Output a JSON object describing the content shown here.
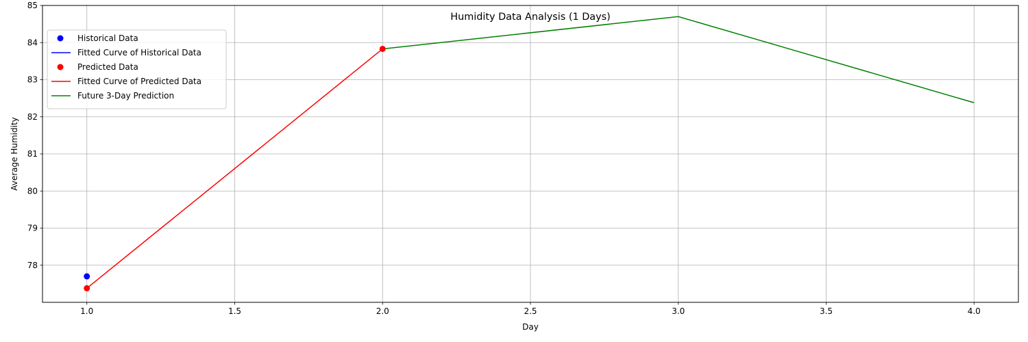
{
  "chart_data": {
    "type": "line",
    "title": "Humidity Data Analysis (1 Days)",
    "xlabel": "Day",
    "ylabel": "Average Humidity",
    "xlim": [
      0.85,
      4.15
    ],
    "ylim": [
      77.0,
      85.0
    ],
    "xticks": [
      1.0,
      1.5,
      2.0,
      2.5,
      3.0,
      3.5,
      4.0
    ],
    "xtick_labels": [
      "1.0",
      "1.5",
      "2.0",
      "2.5",
      "3.0",
      "3.5",
      "4.0"
    ],
    "yticks": [
      78,
      79,
      80,
      81,
      82,
      83,
      84,
      85
    ],
    "ytick_labels": [
      "78",
      "79",
      "80",
      "81",
      "82",
      "83",
      "84",
      "85"
    ],
    "grid": true,
    "legend_position": "top-left",
    "series": [
      {
        "name": "Historical Data",
        "kind": "points",
        "color": "#0000ff",
        "x": [
          1.0
        ],
        "y": [
          77.7
        ]
      },
      {
        "name": "Fitted Curve of Historical Data",
        "kind": "line",
        "color": "#0000ff",
        "x": [
          1.0
        ],
        "y": [
          77.7
        ]
      },
      {
        "name": "Predicted Data",
        "kind": "points",
        "color": "#ff0000",
        "x": [
          1.0,
          2.0
        ],
        "y": [
          77.38,
          83.83
        ]
      },
      {
        "name": "Fitted Curve of Predicted Data",
        "kind": "line",
        "color": "#ff0000",
        "x": [
          1.0,
          2.0
        ],
        "y": [
          77.38,
          83.83
        ]
      },
      {
        "name": "Future 3-Day Prediction",
        "kind": "line",
        "color": "#008000",
        "x": [
          2.0,
          3.0,
          4.0
        ],
        "y": [
          83.83,
          84.7,
          82.38
        ]
      }
    ]
  }
}
